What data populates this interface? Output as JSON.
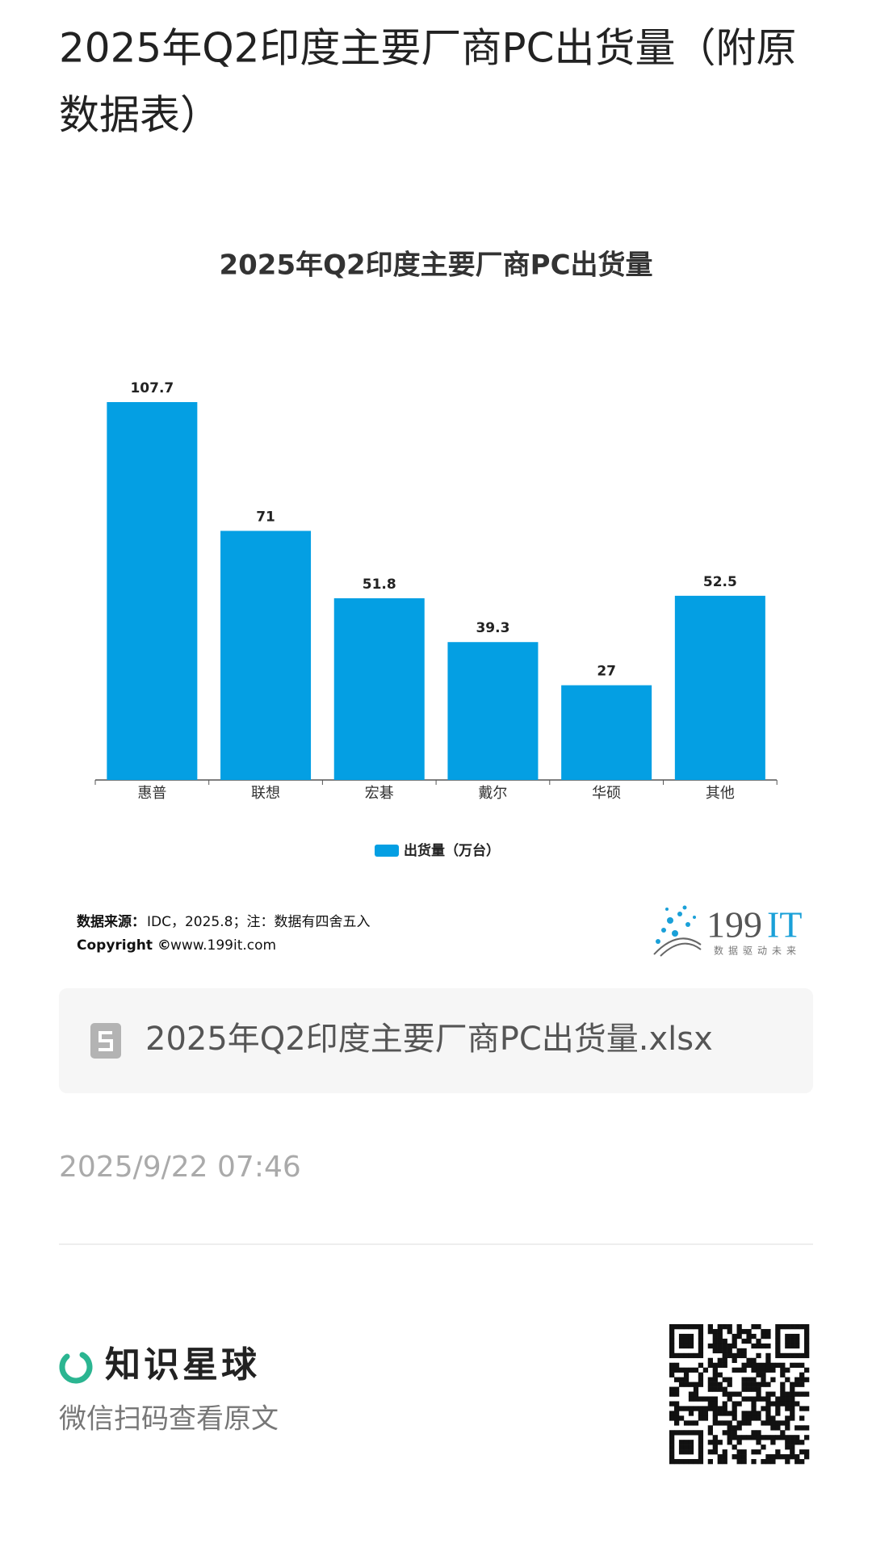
{
  "header": {
    "title_line1": "2025年Q2印度主要厂商PC出货量（附原",
    "title_line2": "数据表）"
  },
  "chart_data": {
    "type": "bar",
    "title": "2025年Q2印度主要厂商PC出货量",
    "categories": [
      "惠普",
      "联想",
      "宏碁",
      "戴尔",
      "华硕",
      "其他"
    ],
    "series": [
      {
        "name": "出货量（万台）",
        "color": "#049fe3",
        "values": [
          107.7,
          71,
          51.8,
          39.3,
          27,
          52.5
        ]
      }
    ],
    "source": {
      "label": "数据来源：",
      "text": "IDC，2025.8；注：数据有四舍五入",
      "copyright_label": "Copyright ©",
      "copyright_text": "www.199it.com"
    },
    "logo": {
      "number": "199",
      "letters": "IT",
      "slogan": "数据驱动未来"
    }
  },
  "attachment": {
    "filename": "2025年Q2印度主要厂商PC出货量.xlsx"
  },
  "timestamp": "2025/9/22 07:46",
  "footer": {
    "brand": "知识星球",
    "hint": "微信扫码查看原文"
  }
}
